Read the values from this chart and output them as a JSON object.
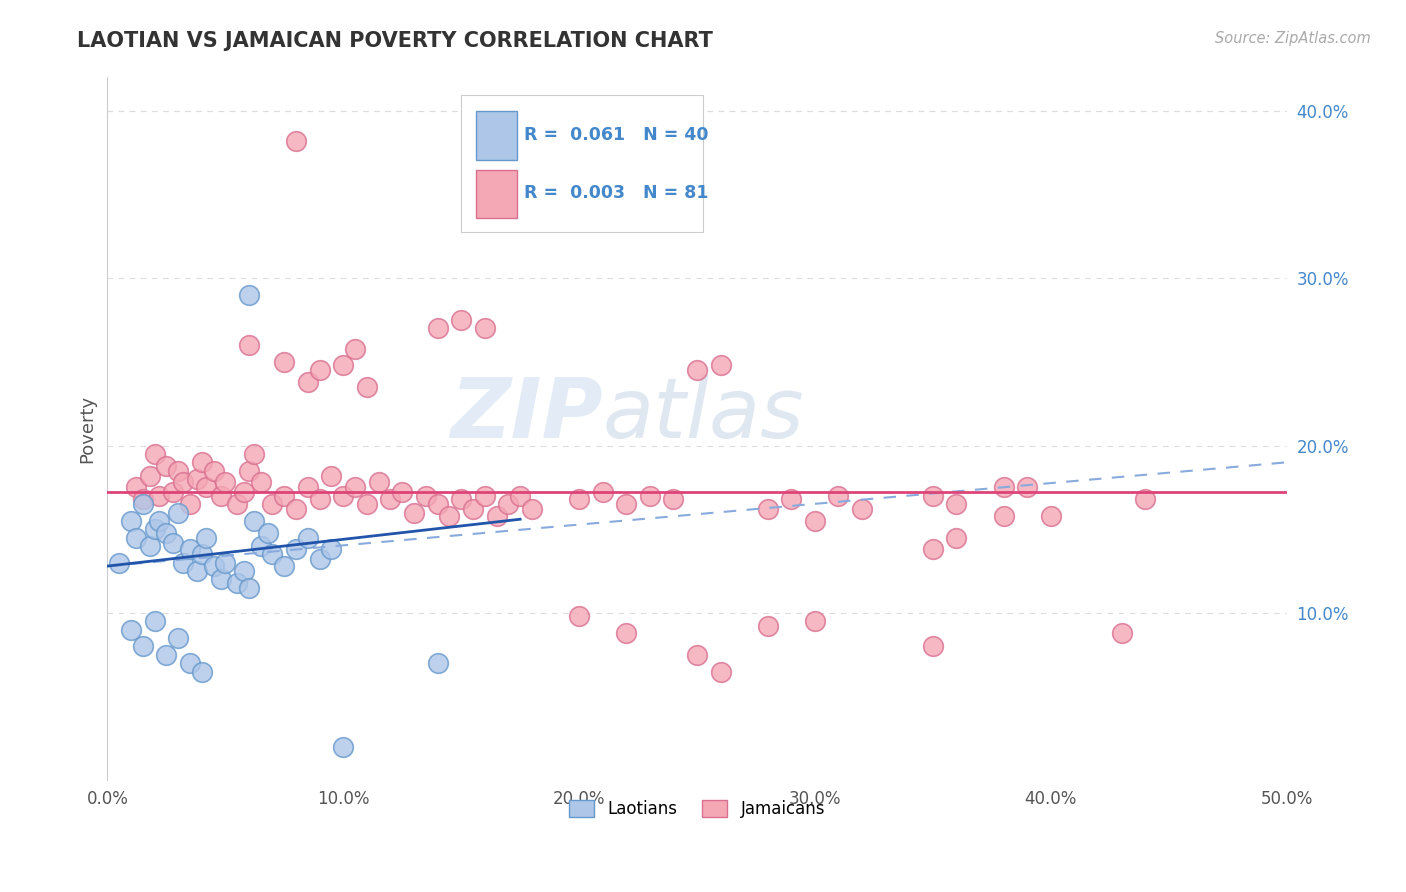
{
  "title": "LAOTIAN VS JAMAICAN POVERTY CORRELATION CHART",
  "source": "Source: ZipAtlas.com",
  "ylabel": "Poverty",
  "xlim": [
    0.0,
    0.5
  ],
  "ylim": [
    0.0,
    0.42
  ],
  "xtick_labels": [
    "0.0%",
    "10.0%",
    "20.0%",
    "30.0%",
    "40.0%",
    "50.0%"
  ],
  "xtick_vals": [
    0.0,
    0.1,
    0.2,
    0.3,
    0.4,
    0.5
  ],
  "ytick_labels": [
    "10.0%",
    "20.0%",
    "30.0%",
    "40.0%"
  ],
  "ytick_vals": [
    0.1,
    0.2,
    0.3,
    0.4
  ],
  "laotian_fill": "#aec6e8",
  "laotian_edge": "#6699cc",
  "jamaican_fill": "#f4a7b5",
  "jamaican_edge": "#d97090",
  "trend_blue_solid_color": "#2255aa",
  "trend_pink_solid_color": "#dd4477",
  "trend_blue_dash_color": "#88aadd",
  "R_laotian": 0.061,
  "N_laotian": 40,
  "R_jamaican": 0.003,
  "N_jamaican": 81,
  "watermark_zip": "ZIP",
  "watermark_atlas": "atlas",
  "background_color": "#ffffff",
  "grid_color": "#dddddd",
  "legend_text_color": "#4488cc"
}
